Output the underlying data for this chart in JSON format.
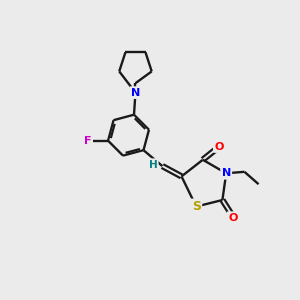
{
  "background_color": "#ebebeb",
  "bond_color": "#1a1a1a",
  "atom_colors": {
    "N": "#0000ff",
    "O": "#ff0000",
    "S": "#b8a000",
    "F": "#cc00cc",
    "H": "#008080",
    "C": "#1a1a1a"
  },
  "figsize": [
    3.0,
    3.0
  ],
  "dpi": 100
}
